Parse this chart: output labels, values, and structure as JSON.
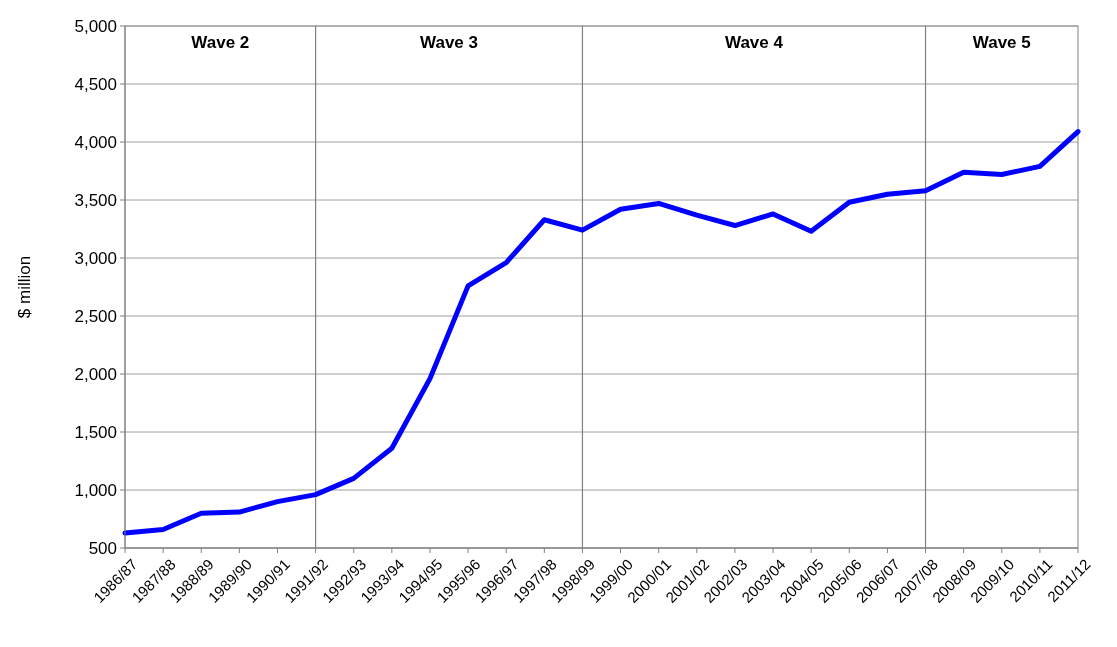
{
  "chart_data": {
    "type": "line",
    "ylabel": "$ million",
    "categories": [
      "1986/87",
      "1987/88",
      "1988/89",
      "1989/90",
      "1990/91",
      "1991/92",
      "1992/93",
      "1993/94",
      "1994/95",
      "1995/96",
      "1996/97",
      "1997/98",
      "1998/99",
      "1999/00",
      "2000/01",
      "2001/02",
      "2002/03",
      "2003/04",
      "2004/05",
      "2005/06",
      "2006/07",
      "2007/08",
      "2008/09",
      "2009/10",
      "2010/11",
      "2011/12"
    ],
    "series": [
      {
        "color": "#0000ff",
        "values": [
          630,
          660,
          800,
          810,
          900,
          960,
          1100,
          1360,
          1960,
          2760,
          2960,
          3330,
          3240,
          3420,
          3470,
          3370,
          3280,
          3380,
          3230,
          3480,
          3550,
          3580,
          3740,
          3720,
          3790,
          4090
        ]
      }
    ],
    "ylim": [
      500,
      5000
    ],
    "yticks": [
      {
        "value": 500,
        "label": "500"
      },
      {
        "value": 1000,
        "label": "1,000"
      },
      {
        "value": 1500,
        "label": "1,500"
      },
      {
        "value": 2000,
        "label": "2,000"
      },
      {
        "value": 2500,
        "label": "2,500"
      },
      {
        "value": 3000,
        "label": "3,000"
      },
      {
        "value": 3500,
        "label": "3,500"
      },
      {
        "value": 4000,
        "label": "4,000"
      },
      {
        "value": 4500,
        "label": "4,500"
      },
      {
        "value": 5000,
        "label": "5,000"
      }
    ],
    "grid": "y",
    "marker": "none",
    "line_style": "solid",
    "ref_lines": [
      {
        "axis": "x",
        "value": "1991/92",
        "color": "#808080"
      },
      {
        "axis": "x",
        "value": "1998/99",
        "color": "#808080"
      },
      {
        "axis": "x",
        "value": "2007/08",
        "color": "#808080"
      }
    ],
    "annotations": [
      "Wave 2",
      "Wave 3",
      "Wave 4",
      "Wave 5"
    ]
  }
}
